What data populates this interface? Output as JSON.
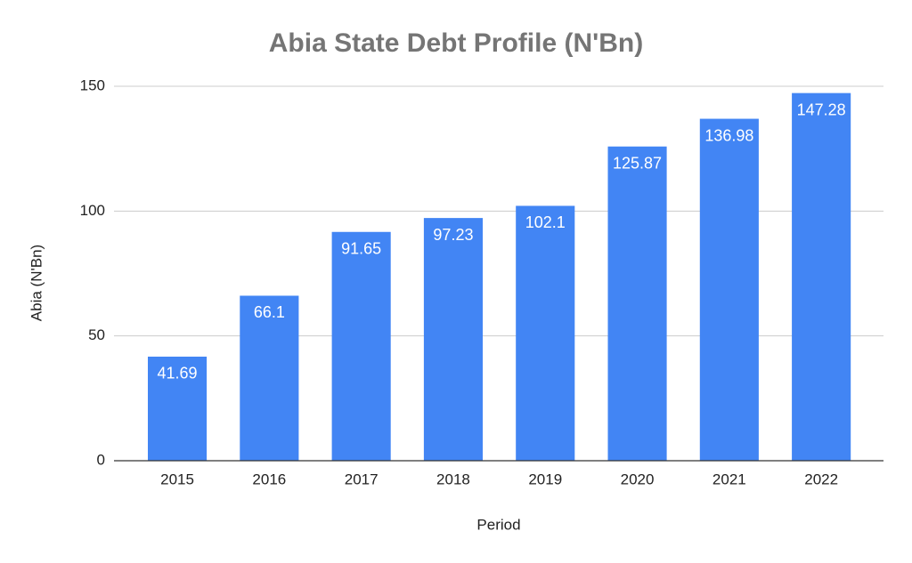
{
  "chart_data": {
    "type": "bar",
    "title": "Abia State Debt Profile (N'Bn)",
    "x_label": "Period",
    "y_label": "Abia (N'Bn)",
    "categories": [
      "2015",
      "2016",
      "2017",
      "2018",
      "2019",
      "2020",
      "2021",
      "2022"
    ],
    "values": [
      41.69,
      66.1,
      91.65,
      97.23,
      102.1,
      125.87,
      136.98,
      147.28
    ],
    "color": "#4285f4",
    "ylim": [
      0,
      150
    ],
    "yticks": [
      0,
      50,
      100,
      150
    ],
    "grid": true
  }
}
